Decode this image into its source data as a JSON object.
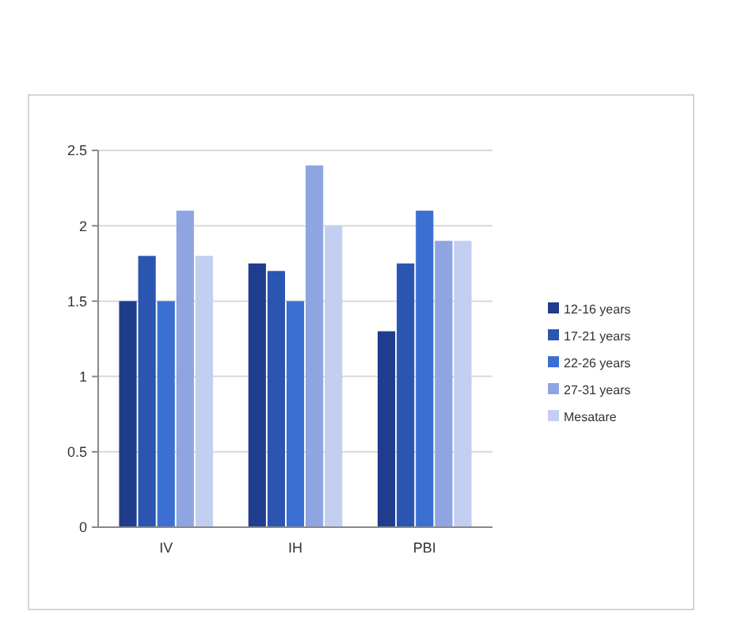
{
  "chart_data": {
    "type": "bar",
    "categories": [
      "IV",
      "IH",
      "PBI"
    ],
    "series": [
      {
        "name": "12-16 years",
        "color": "#1f3d8c",
        "values": [
          1.5,
          1.75,
          1.3
        ]
      },
      {
        "name": "17-21 years",
        "color": "#2a55b0",
        "values": [
          1.8,
          1.7,
          1.75
        ]
      },
      {
        "name": "22-26 years",
        "color": "#3b70d2",
        "values": [
          1.5,
          1.5,
          2.1
        ]
      },
      {
        "name": "27-31 years",
        "color": "#8ea5e2",
        "values": [
          2.1,
          2.4,
          1.9
        ]
      },
      {
        "name": "Mesatare",
        "color": "#c3cff0",
        "values": [
          1.8,
          2.0,
          1.9
        ]
      }
    ],
    "ylim": [
      0,
      2.5
    ],
    "yticks": [
      0,
      0.5,
      1,
      1.5,
      2,
      2.5
    ],
    "grid": "y",
    "legend": "right"
  }
}
